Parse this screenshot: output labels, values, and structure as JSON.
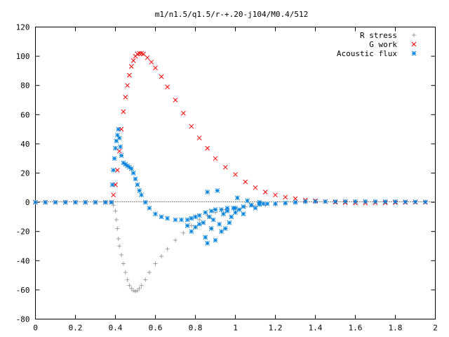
{
  "chart_data": {
    "type": "scatter",
    "title": "m1/n1.5/q1.5/r-+.20-j104/M0.4/512",
    "xlabel": "",
    "ylabel": "",
    "xlim": [
      0,
      2
    ],
    "ylim": [
      -80,
      120
    ],
    "x_ticks": [
      0,
      0.2,
      0.4,
      0.6,
      0.8,
      1,
      1.2,
      1.4,
      1.6,
      1.8,
      2
    ],
    "x_tick_labels": [
      "0",
      "0.2",
      "0.4",
      "0.6",
      "0.8",
      "1",
      "1.2",
      "1.4",
      "1.6",
      "1.8",
      "2"
    ],
    "y_ticks": [
      -80,
      -60,
      -40,
      -20,
      0,
      20,
      40,
      60,
      80,
      100,
      120
    ],
    "y_tick_labels": [
      "-80",
      "-60",
      "-40",
      "-20",
      "0",
      "20",
      "40",
      "60",
      "80",
      "100",
      "120"
    ],
    "grid": false,
    "legend_position": "top-right",
    "series": [
      {
        "name": "R stress",
        "marker": "plus",
        "color": "#a0a0a0",
        "points": [
          [
            0.0,
            0
          ],
          [
            0.05,
            0
          ],
          [
            0.1,
            0
          ],
          [
            0.15,
            0
          ],
          [
            0.2,
            0
          ],
          [
            0.25,
            0
          ],
          [
            0.3,
            0
          ],
          [
            0.35,
            0
          ],
          [
            0.38,
            0
          ],
          [
            0.39,
            -2
          ],
          [
            0.4,
            -6
          ],
          [
            0.405,
            -12
          ],
          [
            0.41,
            -18
          ],
          [
            0.415,
            -25
          ],
          [
            0.42,
            -30
          ],
          [
            0.43,
            -36
          ],
          [
            0.44,
            -42
          ],
          [
            0.45,
            -48
          ],
          [
            0.46,
            -53
          ],
          [
            0.47,
            -57
          ],
          [
            0.48,
            -59
          ],
          [
            0.49,
            -60.5
          ],
          [
            0.5,
            -61
          ],
          [
            0.51,
            -60.5
          ],
          [
            0.52,
            -59
          ],
          [
            0.53,
            -57
          ],
          [
            0.55,
            -53
          ],
          [
            0.57,
            -48
          ],
          [
            0.6,
            -42
          ],
          [
            0.63,
            -37
          ],
          [
            0.66,
            -32
          ],
          [
            0.7,
            -26
          ],
          [
            0.74,
            -21
          ],
          [
            0.78,
            -16
          ],
          [
            0.82,
            -12
          ],
          [
            0.86,
            -9
          ],
          [
            0.9,
            -7
          ],
          [
            0.95,
            -5
          ],
          [
            1.0,
            -4
          ],
          [
            1.05,
            -3
          ],
          [
            1.1,
            -2.5
          ],
          [
            1.15,
            -2
          ],
          [
            1.2,
            -1.5
          ],
          [
            1.25,
            -1
          ],
          [
            1.3,
            -0.5
          ],
          [
            1.35,
            0
          ],
          [
            1.4,
            0.3
          ],
          [
            1.45,
            0.5
          ],
          [
            1.5,
            0.5
          ],
          [
            1.55,
            0.6
          ],
          [
            1.6,
            0.6
          ],
          [
            1.65,
            0.5
          ],
          [
            1.7,
            0.5
          ],
          [
            1.75,
            0.4
          ],
          [
            1.8,
            0.4
          ],
          [
            1.85,
            0.3
          ],
          [
            1.9,
            0.3
          ],
          [
            1.95,
            0.2
          ]
        ]
      },
      {
        "name": "G work",
        "marker": "cross",
        "color": "#ff0000",
        "points": [
          [
            0.0,
            0
          ],
          [
            0.05,
            0
          ],
          [
            0.1,
            0
          ],
          [
            0.15,
            0
          ],
          [
            0.2,
            0
          ],
          [
            0.25,
            0
          ],
          [
            0.3,
            0
          ],
          [
            0.35,
            0
          ],
          [
            0.38,
            0
          ],
          [
            0.39,
            5
          ],
          [
            0.4,
            12
          ],
          [
            0.41,
            22
          ],
          [
            0.42,
            35
          ],
          [
            0.43,
            50
          ],
          [
            0.44,
            62
          ],
          [
            0.45,
            72
          ],
          [
            0.46,
            80
          ],
          [
            0.47,
            87
          ],
          [
            0.48,
            93
          ],
          [
            0.49,
            97
          ],
          [
            0.5,
            100
          ],
          [
            0.51,
            101.5
          ],
          [
            0.52,
            102
          ],
          [
            0.53,
            102
          ],
          [
            0.54,
            101.5
          ],
          [
            0.56,
            99
          ],
          [
            0.58,
            96
          ],
          [
            0.6,
            92
          ],
          [
            0.63,
            86
          ],
          [
            0.66,
            79
          ],
          [
            0.7,
            70
          ],
          [
            0.74,
            61
          ],
          [
            0.78,
            52
          ],
          [
            0.82,
            44
          ],
          [
            0.86,
            37
          ],
          [
            0.9,
            30
          ],
          [
            0.95,
            24
          ],
          [
            1.0,
            19
          ],
          [
            1.05,
            14
          ],
          [
            1.1,
            10
          ],
          [
            1.15,
            7
          ],
          [
            1.2,
            5
          ],
          [
            1.25,
            3.5
          ],
          [
            1.3,
            2.5
          ],
          [
            1.35,
            1.5
          ],
          [
            1.4,
            1
          ],
          [
            1.45,
            0.5
          ],
          [
            1.5,
            0
          ],
          [
            1.55,
            -0.3
          ],
          [
            1.6,
            -0.5
          ],
          [
            1.65,
            -0.5
          ],
          [
            1.7,
            -0.4
          ],
          [
            1.75,
            -0.3
          ],
          [
            1.8,
            -0.2
          ],
          [
            1.85,
            -0.1
          ],
          [
            1.9,
            0
          ],
          [
            1.95,
            0
          ]
        ]
      },
      {
        "name": "Acoustic flux",
        "marker": "star",
        "color": "#0080e0",
        "points": [
          [
            0.0,
            0
          ],
          [
            0.05,
            0
          ],
          [
            0.1,
            0
          ],
          [
            0.15,
            0
          ],
          [
            0.2,
            0
          ],
          [
            0.25,
            0
          ],
          [
            0.3,
            0
          ],
          [
            0.35,
            0
          ],
          [
            0.38,
            0
          ],
          [
            0.385,
            12
          ],
          [
            0.39,
            22
          ],
          [
            0.395,
            30
          ],
          [
            0.4,
            37
          ],
          [
            0.405,
            42
          ],
          [
            0.41,
            46
          ],
          [
            0.415,
            50
          ],
          [
            0.42,
            44
          ],
          [
            0.425,
            38
          ],
          [
            0.43,
            32
          ],
          [
            0.44,
            27
          ],
          [
            0.45,
            26
          ],
          [
            0.46,
            25
          ],
          [
            0.47,
            24
          ],
          [
            0.48,
            23
          ],
          [
            0.49,
            20
          ],
          [
            0.5,
            16
          ],
          [
            0.51,
            12
          ],
          [
            0.52,
            8
          ],
          [
            0.53,
            5
          ],
          [
            0.55,
            0
          ],
          [
            0.57,
            -4
          ],
          [
            0.6,
            -8
          ],
          [
            0.63,
            -10
          ],
          [
            0.66,
            -11
          ],
          [
            0.7,
            -12
          ],
          [
            0.73,
            -12
          ],
          [
            0.76,
            -12
          ],
          [
            0.78,
            -11
          ],
          [
            0.8,
            -10
          ],
          [
            0.82,
            -9
          ],
          [
            0.85,
            -7
          ],
          [
            0.88,
            -6
          ],
          [
            0.9,
            -5
          ],
          [
            0.93,
            -5
          ],
          [
            0.96,
            -4
          ],
          [
            1.0,
            -4
          ],
          [
            1.04,
            -3
          ],
          [
            1.08,
            -2
          ],
          [
            1.12,
            -1.5
          ],
          [
            1.16,
            -1
          ],
          [
            1.2,
            -1
          ],
          [
            1.25,
            -0.5
          ],
          [
            1.3,
            0
          ],
          [
            1.35,
            0.5
          ],
          [
            1.4,
            0.5
          ],
          [
            1.45,
            0.5
          ],
          [
            1.5,
            0.5
          ],
          [
            1.55,
            0.5
          ],
          [
            1.6,
            0.5
          ],
          [
            1.65,
            0.5
          ],
          [
            1.7,
            0.5
          ],
          [
            1.75,
            0.4
          ],
          [
            1.8,
            0.4
          ],
          [
            1.85,
            0.3
          ],
          [
            1.9,
            0.3
          ],
          [
            1.95,
            0.2
          ],
          [
            0.76,
            -16
          ],
          [
            0.78,
            -20
          ],
          [
            0.8,
            -17
          ],
          [
            0.82,
            -15
          ],
          [
            0.84,
            -14
          ],
          [
            0.85,
            -24
          ],
          [
            0.86,
            -28
          ],
          [
            0.86,
            7
          ],
          [
            0.87,
            -10
          ],
          [
            0.88,
            -18
          ],
          [
            0.89,
            -12
          ],
          [
            0.9,
            -26
          ],
          [
            0.91,
            8
          ],
          [
            0.92,
            -15
          ],
          [
            0.93,
            -20
          ],
          [
            0.94,
            -8
          ],
          [
            0.95,
            -18
          ],
          [
            0.96,
            -6
          ],
          [
            0.97,
            -14
          ],
          [
            0.98,
            -10
          ],
          [
            0.99,
            -4
          ],
          [
            1.0,
            -7
          ],
          [
            1.01,
            3
          ],
          [
            1.02,
            -5
          ],
          [
            1.04,
            -8
          ],
          [
            1.06,
            1
          ],
          [
            1.08,
            -2
          ],
          [
            1.1,
            -4
          ],
          [
            1.12,
            0
          ],
          [
            1.14,
            -1
          ]
        ]
      }
    ]
  }
}
